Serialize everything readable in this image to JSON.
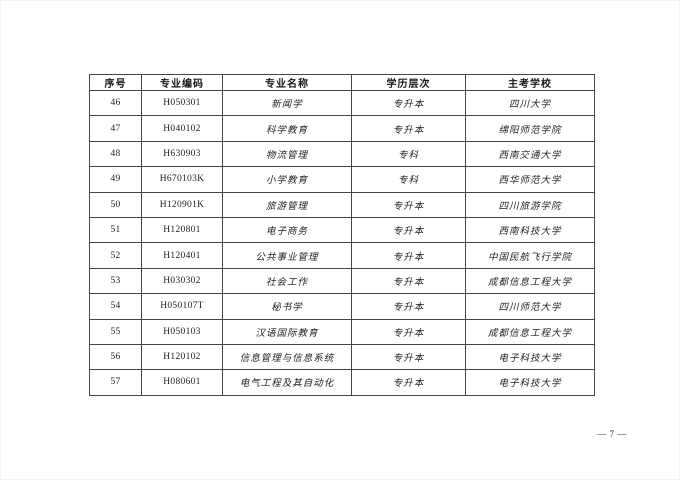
{
  "page": {
    "number_label": "— 7 —"
  },
  "table": {
    "headers": [
      "序号",
      "专业编码",
      "专业名称",
      "学历层次",
      "主考学校"
    ],
    "rows": [
      [
        "46",
        "H050301",
        "新闻学",
        "专升本",
        "四川大学"
      ],
      [
        "47",
        "H040102",
        "科学教育",
        "专升本",
        "绵阳师范学院"
      ],
      [
        "48",
        "H630903",
        "物流管理",
        "专科",
        "西南交通大学"
      ],
      [
        "49",
        "H670103K",
        "小学教育",
        "专科",
        "西华师范大学"
      ],
      [
        "50",
        "H120901K",
        "旅游管理",
        "专升本",
        "四川旅游学院"
      ],
      [
        "51",
        "H120801",
        "电子商务",
        "专升本",
        "西南科技大学"
      ],
      [
        "52",
        "H120401",
        "公共事业管理",
        "专升本",
        "中国民航飞行学院"
      ],
      [
        "53",
        "H030302",
        "社会工作",
        "专升本",
        "成都信息工程大学"
      ],
      [
        "54",
        "H050107T",
        "秘书学",
        "专升本",
        "四川师范大学"
      ],
      [
        "55",
        "H050103",
        "汉语国际教育",
        "专升本",
        "成都信息工程大学"
      ],
      [
        "56",
        "H120102",
        "信息管理与信息系统",
        "专升本",
        "电子科技大学"
      ],
      [
        "57",
        "H080601",
        "电气工程及其自动化",
        "专升本",
        "电子科技大学"
      ]
    ]
  },
  "colors": {
    "table_border": "#454545",
    "text": "#1f1f1f",
    "page_background": "#ffffff"
  }
}
